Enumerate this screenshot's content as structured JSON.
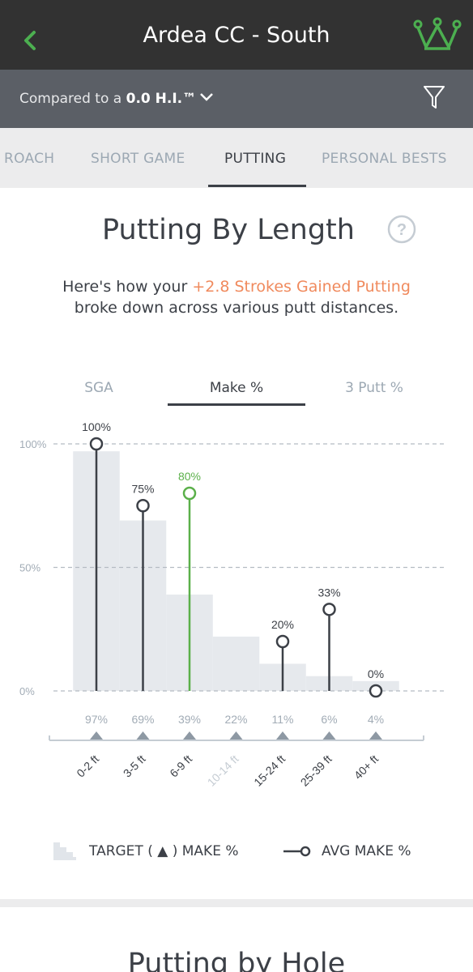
{
  "header": {
    "title": "Ardea CC - South",
    "back_icon": "chevron-left-icon",
    "crown_icon": "crown-icon",
    "accent_color": "#4caf50"
  },
  "compare": {
    "prefix": "Compared to a ",
    "value": "0.0 H.I.™",
    "filter_icon": "filter-icon"
  },
  "tabs": [
    {
      "label": "ROACH",
      "active": false
    },
    {
      "label": "SHORT GAME",
      "active": false
    },
    {
      "label": "PUTTING",
      "active": true
    },
    {
      "label": "PERSONAL BESTS",
      "active": false
    }
  ],
  "section": {
    "title": "Putting By Length",
    "help_icon": "question-icon",
    "desc_before": "Here's how your ",
    "desc_highlight": "+2.8 Strokes Gained Putting",
    "desc_after": " broke down across various putt distances.",
    "highlight_color": "#f08a5d"
  },
  "subtabs": [
    {
      "label": "SGA",
      "active": false
    },
    {
      "label": "Make %",
      "active": true
    },
    {
      "label": "3 Putt %",
      "active": false
    }
  ],
  "chart_data": {
    "type": "bar",
    "ylim": [
      0,
      100
    ],
    "yticks": [
      "100%",
      "50%",
      "0%"
    ],
    "ytick_values": [
      100,
      50,
      0
    ],
    "categories": [
      "0-2 ft",
      "3-5 ft",
      "6-9 ft",
      "10-14 ft",
      "15-24 ft",
      "25-39 ft",
      "40+ ft"
    ],
    "category_dimmed": [
      false,
      false,
      false,
      true,
      false,
      false,
      false
    ],
    "series": [
      {
        "name": "TARGET ( ▲ ) MAKE %",
        "kind": "step-area",
        "values": [
          97,
          69,
          39,
          22,
          11,
          6,
          4
        ],
        "labels": [
          "97%",
          "69%",
          "39%",
          "22%",
          "11%",
          "6%",
          "4%"
        ]
      },
      {
        "name": "AVG MAKE %",
        "kind": "lollipop",
        "values": [
          100,
          75,
          80,
          null,
          20,
          33,
          0
        ],
        "labels": [
          "100%",
          "75%",
          "80%",
          "",
          "20%",
          "33%",
          "0%"
        ],
        "highlight": [
          false,
          false,
          true,
          false,
          false,
          false,
          false
        ]
      }
    ],
    "colors": {
      "target_fill": "#e6e9ed",
      "stem": "#3c4047",
      "highlight": "#5bb04a",
      "grid": "#b5bcc3",
      "marker": "#8e99a4"
    }
  },
  "legend": {
    "target_label": "TARGET ( ▲ ) MAKE %",
    "avg_label": "AVG MAKE %"
  },
  "next_section": {
    "title": "Putting by Hole"
  }
}
